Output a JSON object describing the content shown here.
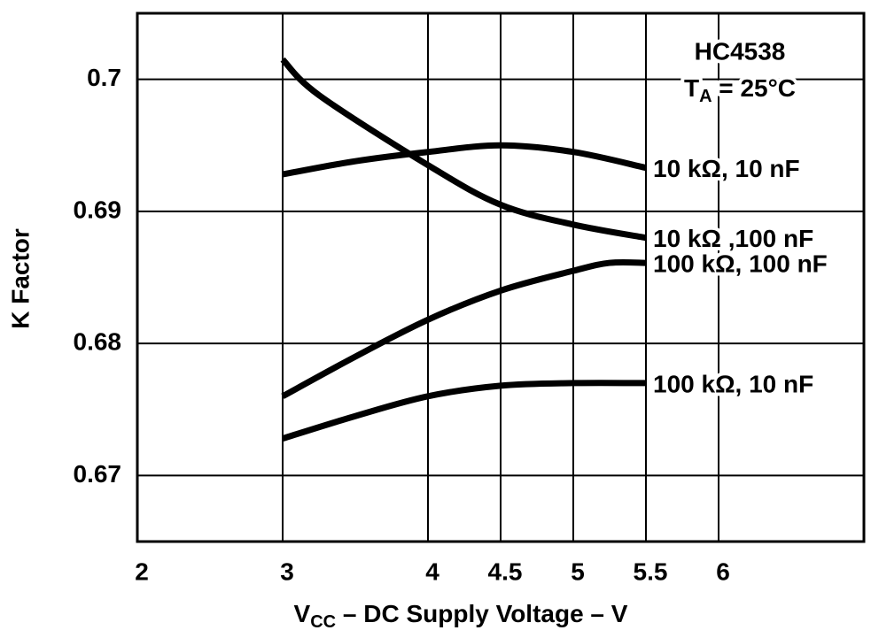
{
  "chart_data": {
    "type": "line",
    "annotation_title": "HC4538",
    "annotation_temp": {
      "symbol": "T",
      "subscript": "A",
      "text": " = 25°C"
    },
    "x_label": {
      "symbol": "V",
      "subscript": "CC",
      "text": " – DC Supply Voltage – V"
    },
    "y_label": "K Factor",
    "xlim": [
      2,
      7
    ],
    "xticks": [
      2,
      3,
      4,
      4.5,
      5,
      5.5,
      6
    ],
    "ylim": [
      0.665,
      0.705
    ],
    "yticks": [
      0.67,
      0.68,
      0.69,
      0.7
    ],
    "grid": true,
    "series": [
      {
        "name": "10 kΩ, 10 nF",
        "color": "#000000",
        "x": [
          3,
          3.5,
          4,
          4.5,
          5,
          5.5
        ],
        "values": [
          0.6928,
          0.6938,
          0.6945,
          0.695,
          0.6945,
          0.6933
        ]
      },
      {
        "name": "10 kΩ ,100 nF",
        "color": "#000000",
        "x": [
          3,
          3.25,
          4,
          4.5,
          5,
          5.5
        ],
        "values": [
          0.7015,
          0.6988,
          0.6935,
          0.6905,
          0.689,
          0.688
        ]
      },
      {
        "name": "100 kΩ, 100 nF",
        "color": "#000000",
        "x": [
          3,
          3.5,
          4,
          4.5,
          5,
          5.25,
          5.5
        ],
        "values": [
          0.676,
          0.679,
          0.6818,
          0.684,
          0.6855,
          0.6861,
          0.6861
        ]
      },
      {
        "name": "100 kΩ, 10 nF",
        "color": "#000000",
        "x": [
          3,
          3.5,
          4,
          4.5,
          5,
          5.5
        ],
        "values": [
          0.6728,
          0.6745,
          0.676,
          0.6768,
          0.677,
          0.677
        ]
      }
    ]
  }
}
